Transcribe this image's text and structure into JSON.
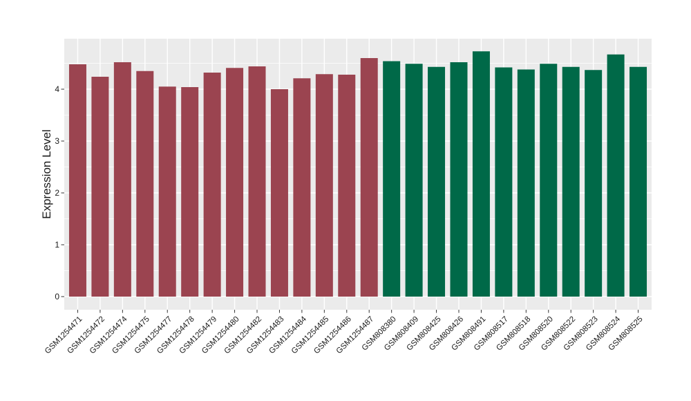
{
  "style": {
    "figure_bg": "#FFFFFF",
    "panel_bg": "#EBEBEB",
    "grid_color": "#FFFFFF",
    "axis_text_color": "#1A1A1A",
    "tick_mark_color": "#333333"
  },
  "chart_data": {
    "type": "bar",
    "title": "",
    "xlabel": "",
    "ylabel": "Expression Level",
    "ylim": [
      0,
      4.97
    ],
    "yticks": [
      0,
      1,
      2,
      3,
      4
    ],
    "y_minor_ticks": [
      0.5,
      1.5,
      2.5,
      3.5,
      4.5
    ],
    "grid": "on",
    "legend": "none",
    "x_label_angle_deg": 45,
    "categories": [
      "GSM1254471",
      "GSM1254472",
      "GSM1254474",
      "GSM1254475",
      "GSM1254477",
      "GSM1254478",
      "GSM1254479",
      "GSM1254480",
      "GSM1254482",
      "GSM1254483",
      "GSM1254484",
      "GSM1254485",
      "GSM1254486",
      "GSM1254487",
      "GSM808380",
      "GSM808409",
      "GSM808425",
      "GSM808426",
      "GSM808491",
      "GSM808517",
      "GSM808518",
      "GSM808520",
      "GSM808522",
      "GSM808523",
      "GSM808524",
      "GSM808525"
    ],
    "values": [
      4.48,
      4.24,
      4.52,
      4.35,
      4.05,
      4.04,
      4.32,
      4.41,
      4.44,
      4.0,
      4.21,
      4.29,
      4.28,
      4.6,
      4.54,
      4.49,
      4.43,
      4.52,
      4.73,
      4.42,
      4.38,
      4.49,
      4.43,
      4.37,
      4.67,
      4.43
    ],
    "groups": [
      "A",
      "A",
      "A",
      "A",
      "A",
      "A",
      "A",
      "A",
      "A",
      "A",
      "A",
      "A",
      "A",
      "A",
      "B",
      "B",
      "B",
      "B",
      "B",
      "B",
      "B",
      "B",
      "B",
      "B",
      "B",
      "B"
    ],
    "group_colors": {
      "A": "#9B4450",
      "B": "#006948"
    }
  }
}
